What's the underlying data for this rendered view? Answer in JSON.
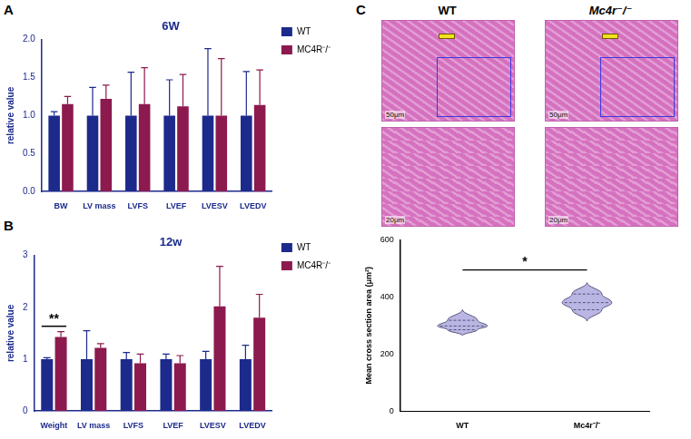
{
  "chart_data": [
    {
      "panel": "A",
      "type": "bar",
      "title": "6W",
      "y_label": "relative value",
      "categories": [
        "BW",
        "LV mass",
        "LVFS",
        "LVEF",
        "LVESV",
        "LVEDV"
      ],
      "series": [
        {
          "name": "WT",
          "color": "#1c2a8c",
          "values": [
            1.0,
            1.0,
            1.0,
            1.0,
            1.0,
            1.0
          ],
          "errors": [
            0.05,
            0.37,
            0.57,
            0.47,
            0.88,
            0.58
          ]
        },
        {
          "name": "MC4R⁻/⁻",
          "color": "#8c1a4e",
          "values": [
            1.15,
            1.22,
            1.15,
            1.12,
            1.0,
            1.14
          ],
          "errors": [
            0.1,
            0.18,
            0.48,
            0.42,
            0.75,
            0.46
          ]
        }
      ],
      "ylim": [
        0,
        2
      ],
      "yticks": [
        {
          "value": 0,
          "label": "0.0"
        },
        {
          "value": 0.5,
          "label": "0.5"
        },
        {
          "value": 1,
          "label": "1.0"
        },
        {
          "value": 1.5,
          "label": "1.5"
        },
        {
          "value": 2,
          "label": "2.0"
        }
      ],
      "grid": false,
      "legend": "right"
    },
    {
      "panel": "B",
      "type": "bar",
      "title": "12w",
      "y_label": "relative value",
      "categories": [
        "Weight",
        "LV mass",
        "LVFS",
        "LVEF",
        "LVESV",
        "LVEDV"
      ],
      "series": [
        {
          "name": "WT",
          "color": "#1c2a8c",
          "values": [
            1.0,
            1.0,
            1.0,
            1.0,
            1.0,
            1.0
          ],
          "errors": [
            0.03,
            0.55,
            0.13,
            0.1,
            0.15,
            0.27
          ]
        },
        {
          "name": "MC4R⁻/⁻",
          "color": "#8c1a4e",
          "values": [
            1.43,
            1.22,
            0.92,
            0.92,
            2.02,
            1.8
          ],
          "errors": [
            0.1,
            0.08,
            0.18,
            0.15,
            0.77,
            0.45
          ]
        }
      ],
      "ylim": [
        0,
        3
      ],
      "yticks": [
        0,
        1,
        2,
        3
      ],
      "grid": false,
      "legend": "right",
      "annotations": [
        {
          "text": "**",
          "category": "Weight"
        }
      ]
    },
    {
      "panel": "C",
      "type": "violin",
      "y_label": "Mean cross section area (μm²)",
      "categories": [
        "WT",
        "Mc4r⁻/⁻"
      ],
      "stats": [
        {
          "min": 265,
          "q1": 285,
          "median": 298,
          "q3": 318,
          "max": 355
        },
        {
          "min": 315,
          "q1": 355,
          "median": 380,
          "q3": 410,
          "max": 450
        }
      ],
      "color": "#b9b6e3",
      "ylim": [
        0,
        600
      ],
      "yticks": [
        0,
        200,
        400,
        600
      ],
      "grid": false,
      "annotations": [
        {
          "text": "*",
          "between": [
            "WT",
            "Mc4r⁻/⁻"
          ]
        }
      ]
    }
  ],
  "histology": {
    "panel": "C",
    "columns": [
      {
        "title": "WT",
        "scale_bars": [
          "50μm",
          "20μm"
        ]
      },
      {
        "title": "Mc4r⁻/⁻",
        "scale_bars": [
          "50μm",
          "20μm"
        ]
      }
    ]
  }
}
